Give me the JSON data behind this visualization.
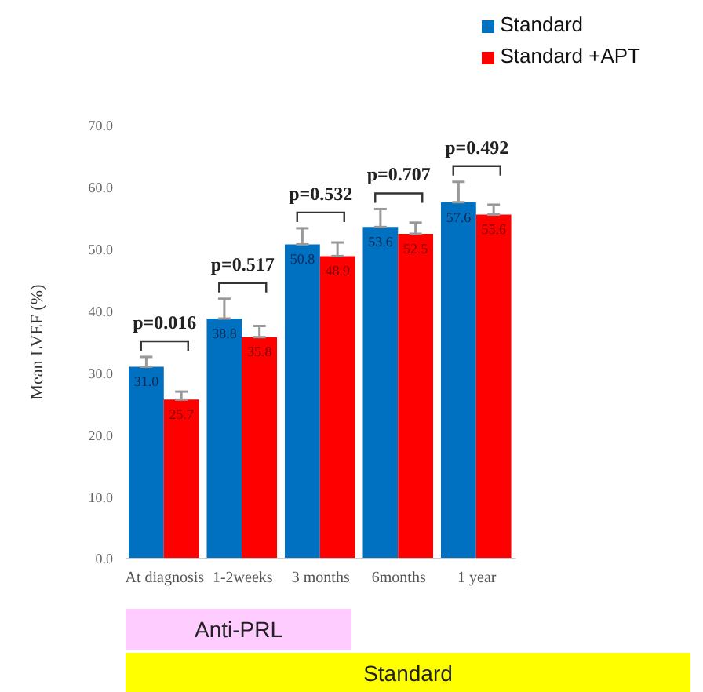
{
  "chart_data": {
    "type": "bar",
    "ylabel": "Mean LVEF (%)",
    "categories": [
      "At diagnosis",
      "1-2weeks",
      "3 months",
      "6months",
      "1 year"
    ],
    "series": [
      {
        "name": "Standard",
        "color": "#0070c0",
        "values": [
          31.0,
          38.8,
          50.8,
          53.6,
          57.6
        ],
        "value_labels": [
          "31.0",
          "38.8",
          "50.8",
          "53.6",
          "57.6"
        ],
        "errors": [
          [
            31.0,
            32.6
          ],
          [
            38.8,
            42.0
          ],
          [
            50.8,
            53.4
          ],
          [
            53.6,
            56.5
          ],
          [
            57.6,
            60.9
          ]
        ]
      },
      {
        "name": "Standard +APT",
        "color": "#ff0000",
        "values": [
          25.7,
          35.8,
          48.9,
          52.5,
          55.6
        ],
        "value_labels": [
          "25.7",
          "35.8",
          "48.9",
          "52.5",
          "55.6"
        ],
        "errors": [
          [
            25.7,
            27.0
          ],
          [
            35.8,
            37.6
          ],
          [
            48.9,
            51.1
          ],
          [
            52.5,
            54.3
          ],
          [
            55.6,
            57.2
          ]
        ]
      }
    ],
    "ylim": [
      0,
      70
    ],
    "yticks": [
      {
        "value": 0,
        "label": "0.0"
      },
      {
        "value": 10,
        "label": "10.0"
      },
      {
        "value": 20,
        "label": "20.0"
      },
      {
        "value": 30,
        "label": "30.0"
      },
      {
        "value": 40,
        "label": "40.0"
      },
      {
        "value": 50,
        "label": "50.0"
      },
      {
        "value": 60,
        "label": "60.0"
      },
      {
        "value": 70,
        "label": "70.0"
      }
    ],
    "legend": "top right",
    "annotations": [
      "p=0.016",
      "p=0.517",
      "p=0.532",
      "p=0.707",
      "p=0.492",
      "Anti-PRL",
      "Standard"
    ]
  }
}
